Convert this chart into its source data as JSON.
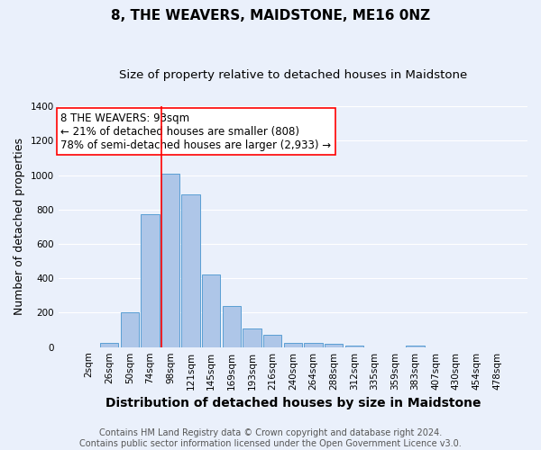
{
  "title": "8, THE WEAVERS, MAIDSTONE, ME16 0NZ",
  "subtitle": "Size of property relative to detached houses in Maidstone",
  "xlabel": "Distribution of detached houses by size in Maidstone",
  "ylabel": "Number of detached properties",
  "categories": [
    "2sqm",
    "26sqm",
    "50sqm",
    "74sqm",
    "98sqm",
    "121sqm",
    "145sqm",
    "169sqm",
    "193sqm",
    "216sqm",
    "240sqm",
    "264sqm",
    "288sqm",
    "312sqm",
    "335sqm",
    "359sqm",
    "383sqm",
    "407sqm",
    "430sqm",
    "454sqm",
    "478sqm"
  ],
  "values": [
    0,
    22,
    200,
    770,
    1010,
    890,
    420,
    240,
    110,
    70,
    25,
    27,
    18,
    8,
    0,
    0,
    10,
    0,
    0,
    0,
    0
  ],
  "bar_color": "#aec6e8",
  "bar_edge_color": "#5a9fd4",
  "bg_color": "#eaf0fb",
  "grid_color": "#ffffff",
  "vline_color": "red",
  "vline_index": 3.57,
  "annotation_text": "8 THE WEAVERS: 93sqm\n← 21% of detached houses are smaller (808)\n78% of semi-detached houses are larger (2,933) →",
  "annotation_box_color": "white",
  "annotation_box_edge": "red",
  "ylim": [
    0,
    1400
  ],
  "yticks": [
    0,
    200,
    400,
    600,
    800,
    1000,
    1200,
    1400
  ],
  "footnote_line1": "Contains HM Land Registry data © Crown copyright and database right 2024.",
  "footnote_line2": "Contains public sector information licensed under the Open Government Licence v3.0.",
  "title_fontsize": 11,
  "subtitle_fontsize": 9.5,
  "xlabel_fontsize": 10,
  "ylabel_fontsize": 9,
  "tick_fontsize": 7.5,
  "annotation_fontsize": 8.5,
  "footnote_fontsize": 7
}
